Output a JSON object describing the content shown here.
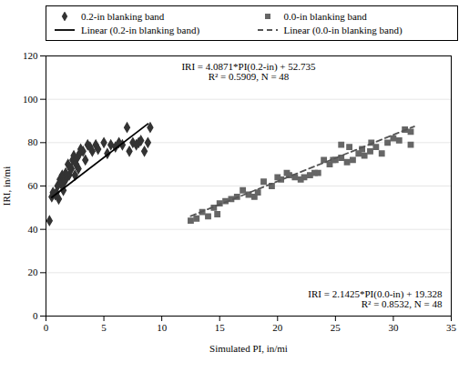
{
  "chart_data": {
    "type": "scatter",
    "x_label": "Simulated PI, in/mi",
    "y_label": "IRI, in/mi",
    "xlim": [
      0,
      35
    ],
    "ylim": [
      0,
      120
    ],
    "xticks": [
      0,
      5,
      10,
      15,
      20,
      25,
      30,
      35
    ],
    "yticks": [
      0,
      20,
      40,
      60,
      80,
      100,
      120
    ],
    "grid": "y",
    "legend": "top",
    "series": [
      {
        "name": "0.2-in blanking band",
        "type": "scatter",
        "marker": "diamond",
        "color": "#333333",
        "x": [
          0.3,
          0.5,
          0.6,
          0.8,
          0.9,
          1.0,
          1.1,
          1.2,
          1.3,
          1.4,
          1.5,
          1.6,
          1.7,
          1.8,
          1.9,
          2.0,
          2.1,
          2.2,
          2.3,
          2.4,
          2.5,
          2.6,
          2.7,
          2.8,
          2.9,
          3.0,
          3.2,
          3.4,
          3.6,
          3.8,
          4.0,
          4.3,
          4.5,
          5.0,
          5.3,
          5.6,
          6.0,
          6.3,
          6.6,
          7.0,
          7.2,
          7.5,
          7.8,
          8.0,
          8.2,
          8.5,
          8.8,
          9.0
        ],
        "values": [
          44,
          55,
          57,
          56,
          57,
          60,
          54,
          63,
          61,
          65,
          58,
          62,
          66,
          64,
          70,
          65,
          68,
          68,
          72,
          74,
          65,
          70,
          73,
          68,
          75,
          77,
          76,
          72,
          79,
          78,
          76,
          79,
          77,
          80,
          75,
          79,
          78,
          80,
          79,
          87,
          76,
          80,
          79,
          80,
          81,
          76,
          80,
          87
        ]
      },
      {
        "name": "0.0-in blanking band",
        "type": "scatter",
        "marker": "square",
        "color": "#666666",
        "x": [
          12.5,
          13.0,
          13.5,
          14.0,
          14.5,
          14.8,
          15.0,
          15.5,
          16.0,
          16.5,
          17.0,
          17.5,
          18.0,
          18.3,
          18.8,
          19.5,
          20.0,
          20.3,
          20.8,
          21.0,
          21.5,
          22.0,
          22.3,
          22.8,
          23.2,
          23.5,
          24.0,
          24.5,
          24.8,
          25.0,
          25.5,
          25.5,
          26.0,
          26.2,
          26.5,
          27.0,
          27.3,
          27.5,
          28.0,
          28.1,
          28.5,
          29.0,
          29.5,
          30.0,
          30.5,
          31.0,
          31.5,
          31.5
        ],
        "values": [
          44,
          45,
          48,
          46,
          50,
          47,
          52,
          53,
          54,
          55,
          58,
          56,
          55,
          57,
          62,
          60,
          64,
          63,
          66,
          65,
          64,
          63,
          64,
          65,
          66,
          66,
          72,
          70,
          72,
          72,
          73,
          79,
          71,
          78,
          72,
          75,
          77,
          74,
          76,
          80,
          78,
          75,
          80,
          82,
          81,
          86,
          85,
          79
        ]
      },
      {
        "name": "Linear (0.2-in blanking band)",
        "type": "line",
        "line_style": "solid",
        "color": "#000000",
        "x": [
          0.5,
          8.8
        ],
        "values": [
          54.77855,
          88.70148
        ]
      },
      {
        "name": "Linear (0.0-in blanking band)",
        "type": "line",
        "line_style": "dashed",
        "color": "#555555",
        "x": [
          12.5,
          31.8
        ],
        "values": [
          46.10925,
          87.4595
        ]
      }
    ],
    "annotations": [
      "IRI = 4.0871*PI(0.2-in) + 52.735\nR² = 0.5909, N = 48",
      "IRI = 2.1425*PI(0.0-in) + 19.328\nR² = 0.8532, N = 48"
    ]
  }
}
